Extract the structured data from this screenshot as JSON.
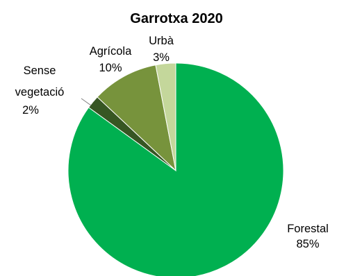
{
  "chart_data": {
    "type": "pie",
    "title": "Garrotxa 2020",
    "slices": [
      {
        "name": "Forestal",
        "percent_label": "85%",
        "value": 85,
        "color": "#00b050"
      },
      {
        "name": "Sense vegetació",
        "percent_label": "2%",
        "value": 2,
        "color": "#375623"
      },
      {
        "name": "Agrícola",
        "percent_label": "10%",
        "value": 10,
        "color": "#77933c"
      },
      {
        "name": "Urbà",
        "percent_label": "3%",
        "value": 3,
        "color": "#c4d79b"
      }
    ],
    "legend": "none",
    "labels": "outside"
  }
}
